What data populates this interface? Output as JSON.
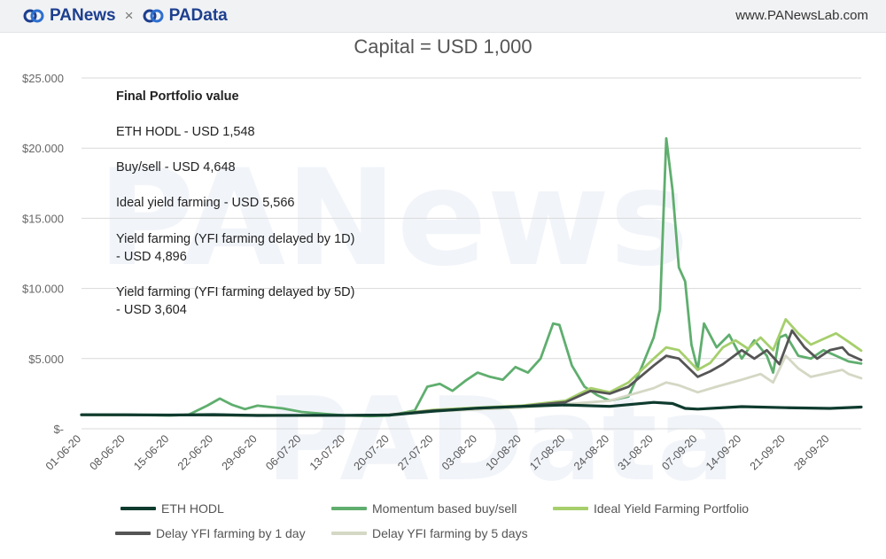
{
  "header": {
    "brand_left": "PANews",
    "separator": "×",
    "brand_right": "PAData",
    "site_url": "www.PANewsLab.com"
  },
  "chart_data": {
    "type": "line",
    "title": "Capital = USD 1,000",
    "xlabel": "",
    "ylabel": "",
    "ylim": [
      0,
      25000
    ],
    "y_ticks": [
      0,
      5000,
      10000,
      15000,
      20000,
      25000
    ],
    "y_tick_labels": [
      "$-",
      "$5.000",
      "$10.000",
      "$15.000",
      "$20.000",
      "$25.000"
    ],
    "x_tick_labels": [
      "01-06-20",
      "08-06-20",
      "15-06-20",
      "22-06-20",
      "29-06-20",
      "06-07-20",
      "13-07-20",
      "20-07-20",
      "27-07-20",
      "03-08-20",
      "10-08-20",
      "17-08-20",
      "24-08-20",
      "31-08-20",
      "07-09-20",
      "14-09-20",
      "21-09-20",
      "28-09-20"
    ],
    "x_start": "2020-06-01",
    "x_end": "2020-10-03",
    "grid": true,
    "legend_position": "bottom",
    "annotations": {
      "heading": "Final Portfolio value",
      "lines": [
        "ETH HODL - USD 1,548",
        "Buy/sell - USD 4,648",
        "Ideal yield farming - USD 5,566",
        "Yield farming (YFI farming delayed by 1D)",
        "- USD 4,896",
        "Yield farming (YFI farming delayed by 5D)",
        "- USD 3,604"
      ]
    },
    "series": [
      {
        "name": "ETH HODL",
        "color": "#0f3b2e",
        "points": [
          [
            "2020-06-01",
            1000
          ],
          [
            "2020-06-08",
            1000
          ],
          [
            "2020-06-15",
            980
          ],
          [
            "2020-06-22",
            1010
          ],
          [
            "2020-06-29",
            950
          ],
          [
            "2020-07-06",
            960
          ],
          [
            "2020-07-13",
            960
          ],
          [
            "2020-07-20",
            980
          ],
          [
            "2020-07-27",
            1250
          ],
          [
            "2020-08-03",
            1470
          ],
          [
            "2020-08-10",
            1600
          ],
          [
            "2020-08-17",
            1700
          ],
          [
            "2020-08-24",
            1600
          ],
          [
            "2020-08-31",
            1880
          ],
          [
            "2020-09-03",
            1800
          ],
          [
            "2020-09-05",
            1450
          ],
          [
            "2020-09-07",
            1400
          ],
          [
            "2020-09-14",
            1580
          ],
          [
            "2020-09-21",
            1500
          ],
          [
            "2020-09-28",
            1450
          ],
          [
            "2020-10-03",
            1548
          ]
        ]
      },
      {
        "name": "Momentum based buy/sell",
        "color": "#5fae6e",
        "points": [
          [
            "2020-06-01",
            1000
          ],
          [
            "2020-06-08",
            1000
          ],
          [
            "2020-06-15",
            950
          ],
          [
            "2020-06-18",
            1000
          ],
          [
            "2020-06-21",
            1650
          ],
          [
            "2020-06-23",
            2150
          ],
          [
            "2020-06-25",
            1700
          ],
          [
            "2020-06-27",
            1400
          ],
          [
            "2020-06-29",
            1650
          ],
          [
            "2020-07-03",
            1450
          ],
          [
            "2020-07-06",
            1200
          ],
          [
            "2020-07-10",
            1050
          ],
          [
            "2020-07-13",
            950
          ],
          [
            "2020-07-17",
            900
          ],
          [
            "2020-07-20",
            950
          ],
          [
            "2020-07-24",
            1300
          ],
          [
            "2020-07-26",
            3000
          ],
          [
            "2020-07-28",
            3200
          ],
          [
            "2020-07-30",
            2700
          ],
          [
            "2020-08-01",
            3400
          ],
          [
            "2020-08-03",
            4000
          ],
          [
            "2020-08-05",
            3700
          ],
          [
            "2020-08-07",
            3500
          ],
          [
            "2020-08-09",
            4400
          ],
          [
            "2020-08-11",
            4000
          ],
          [
            "2020-08-13",
            5000
          ],
          [
            "2020-08-15",
            7500
          ],
          [
            "2020-08-16",
            7400
          ],
          [
            "2020-08-18",
            4500
          ],
          [
            "2020-08-20",
            3000
          ],
          [
            "2020-08-22",
            2400
          ],
          [
            "2020-08-24",
            2000
          ],
          [
            "2020-08-27",
            2300
          ],
          [
            "2020-08-29",
            4300
          ],
          [
            "2020-08-31",
            6500
          ],
          [
            "2020-09-01",
            8500
          ],
          [
            "2020-09-02",
            20700
          ],
          [
            "2020-09-03",
            17000
          ],
          [
            "2020-09-04",
            11500
          ],
          [
            "2020-09-05",
            10500
          ],
          [
            "2020-09-06",
            6000
          ],
          [
            "2020-09-07",
            4200
          ],
          [
            "2020-09-08",
            7500
          ],
          [
            "2020-09-10",
            5800
          ],
          [
            "2020-09-12",
            6700
          ],
          [
            "2020-09-14",
            5000
          ],
          [
            "2020-09-16",
            6300
          ],
          [
            "2020-09-18",
            5200
          ],
          [
            "2020-09-19",
            4000
          ],
          [
            "2020-09-20",
            6500
          ],
          [
            "2020-09-21",
            6700
          ],
          [
            "2020-09-23",
            5200
          ],
          [
            "2020-09-25",
            5000
          ],
          [
            "2020-09-27",
            5600
          ],
          [
            "2020-09-29",
            5200
          ],
          [
            "2020-10-01",
            4800
          ],
          [
            "2020-10-03",
            4648
          ]
        ]
      },
      {
        "name": "Ideal Yield Farming Portfolio",
        "color": "#a6cf6c",
        "points": [
          [
            "2020-06-01",
            1000
          ],
          [
            "2020-06-15",
            980
          ],
          [
            "2020-06-29",
            960
          ],
          [
            "2020-07-13",
            950
          ],
          [
            "2020-07-20",
            1000
          ],
          [
            "2020-07-27",
            1350
          ],
          [
            "2020-08-03",
            1500
          ],
          [
            "2020-08-10",
            1650
          ],
          [
            "2020-08-17",
            2000
          ],
          [
            "2020-08-21",
            2900
          ],
          [
            "2020-08-24",
            2600
          ],
          [
            "2020-08-27",
            3300
          ],
          [
            "2020-08-31",
            5000
          ],
          [
            "2020-09-02",
            5800
          ],
          [
            "2020-09-04",
            5600
          ],
          [
            "2020-09-07",
            4200
          ],
          [
            "2020-09-09",
            4700
          ],
          [
            "2020-09-11",
            5800
          ],
          [
            "2020-09-13",
            6300
          ],
          [
            "2020-09-15",
            5700
          ],
          [
            "2020-09-17",
            6500
          ],
          [
            "2020-09-19",
            5600
          ],
          [
            "2020-09-21",
            7800
          ],
          [
            "2020-09-23",
            6800
          ],
          [
            "2020-09-25",
            6000
          ],
          [
            "2020-09-27",
            6400
          ],
          [
            "2020-09-29",
            6800
          ],
          [
            "2020-10-01",
            6200
          ],
          [
            "2020-10-03",
            5566
          ]
        ]
      },
      {
        "name": "Delay YFI farming by 1 day",
        "color": "#555555",
        "points": [
          [
            "2020-06-01",
            1000
          ],
          [
            "2020-06-15",
            980
          ],
          [
            "2020-06-29",
            960
          ],
          [
            "2020-07-13",
            950
          ],
          [
            "2020-07-20",
            1000
          ],
          [
            "2020-07-27",
            1300
          ],
          [
            "2020-08-03",
            1450
          ],
          [
            "2020-08-10",
            1600
          ],
          [
            "2020-08-17",
            1900
          ],
          [
            "2020-08-21",
            2700
          ],
          [
            "2020-08-24",
            2500
          ],
          [
            "2020-08-27",
            3000
          ],
          [
            "2020-08-31",
            4500
          ],
          [
            "2020-09-02",
            5200
          ],
          [
            "2020-09-04",
            5000
          ],
          [
            "2020-09-07",
            3700
          ],
          [
            "2020-09-09",
            4100
          ],
          [
            "2020-09-11",
            4600
          ],
          [
            "2020-09-14",
            5600
          ],
          [
            "2020-09-16",
            5000
          ],
          [
            "2020-09-18",
            5600
          ],
          [
            "2020-09-20",
            4600
          ],
          [
            "2020-09-22",
            7000
          ],
          [
            "2020-09-24",
            5800
          ],
          [
            "2020-09-26",
            5000
          ],
          [
            "2020-09-28",
            5600
          ],
          [
            "2020-09-30",
            5800
          ],
          [
            "2020-10-01",
            5300
          ],
          [
            "2020-10-03",
            4896
          ]
        ]
      },
      {
        "name": "Delay YFI farming by 5 days",
        "color": "#d4d8c4",
        "points": [
          [
            "2020-06-01",
            1000
          ],
          [
            "2020-06-15",
            980
          ],
          [
            "2020-06-29",
            960
          ],
          [
            "2020-07-13",
            950
          ],
          [
            "2020-07-20",
            1000
          ],
          [
            "2020-07-27",
            1250
          ],
          [
            "2020-08-03",
            1380
          ],
          [
            "2020-08-10",
            1500
          ],
          [
            "2020-08-17",
            1750
          ],
          [
            "2020-08-24",
            2000
          ],
          [
            "2020-08-31",
            2900
          ],
          [
            "2020-09-02",
            3300
          ],
          [
            "2020-09-04",
            3100
          ],
          [
            "2020-09-07",
            2600
          ],
          [
            "2020-09-10",
            3000
          ],
          [
            "2020-09-14",
            3500
          ],
          [
            "2020-09-17",
            3900
          ],
          [
            "2020-09-19",
            3300
          ],
          [
            "2020-09-21",
            5200
          ],
          [
            "2020-09-23",
            4300
          ],
          [
            "2020-09-25",
            3700
          ],
          [
            "2020-09-28",
            4000
          ],
          [
            "2020-09-30",
            4200
          ],
          [
            "2020-10-01",
            3900
          ],
          [
            "2020-10-03",
            3604
          ]
        ]
      }
    ]
  },
  "watermarks": [
    "PANews",
    "PAData"
  ]
}
